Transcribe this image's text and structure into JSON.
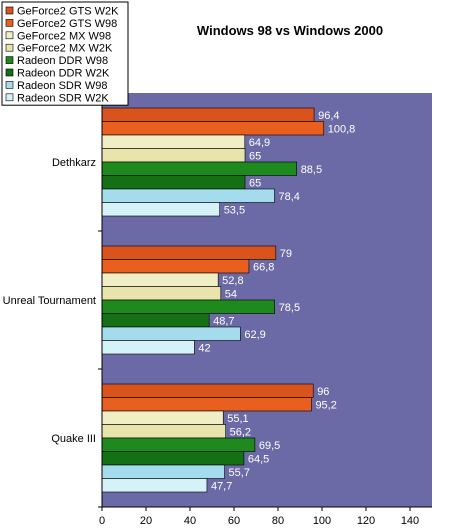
{
  "chart_data": {
    "type": "bar",
    "orientation": "horizontal",
    "title": "Windows 98 vs Windows 2000",
    "xlabel": "",
    "ylabel": "",
    "xlim": [
      0,
      150
    ],
    "xticks": [
      0,
      20,
      40,
      60,
      80,
      100,
      120,
      140
    ],
    "categories": [
      "Dethkarz",
      "Unreal Tournament",
      "Quake III"
    ],
    "series": [
      {
        "name": "GeForce2 GTS W2K",
        "values": [
          96.4,
          79,
          96
        ],
        "labels": [
          "96,4",
          "79",
          "96"
        ],
        "color": "#d9541c"
      },
      {
        "name": "GeForce2 GTS W98",
        "values": [
          100.8,
          66.8,
          95.2
        ],
        "labels": [
          "100,8",
          "66,8",
          "95,2"
        ],
        "color": "#e85f20"
      },
      {
        "name": "GeForce2 MX W98",
        "values": [
          64.9,
          52.8,
          55.1
        ],
        "labels": [
          "64,9",
          "52,8",
          "55,1"
        ],
        "color": "#f0eec4"
      },
      {
        "name": "GeForce2 MX W2K",
        "values": [
          65,
          54,
          56.2
        ],
        "labels": [
          "65",
          "54",
          "56,2"
        ],
        "color": "#e8e4ac"
      },
      {
        "name": "Radeon DDR W98",
        "values": [
          88.5,
          78.5,
          69.5
        ],
        "labels": [
          "88,5",
          "78,5",
          "69,5"
        ],
        "color": "#1e8a1e"
      },
      {
        "name": "Radeon DDR W2K",
        "values": [
          65,
          48.7,
          64.5
        ],
        "labels": [
          "65",
          "48,7",
          "64,5"
        ],
        "color": "#157015"
      },
      {
        "name": "Radeon SDR W98",
        "values": [
          78.4,
          62.9,
          55.7
        ],
        "labels": [
          "78,4",
          "62,9",
          "55,7"
        ],
        "color": "#a4dcee"
      },
      {
        "name": "Radeon SDR W2K",
        "values": [
          53.5,
          42,
          47.7
        ],
        "labels": [
          "53,5",
          "42",
          "47,7"
        ],
        "color": "#d4f2f8"
      }
    ],
    "grid": false,
    "legend": "top-left",
    "colors": {
      "plot_background": "#6b6aa6",
      "axis": "#000000",
      "value_label": "#ffffff"
    }
  }
}
